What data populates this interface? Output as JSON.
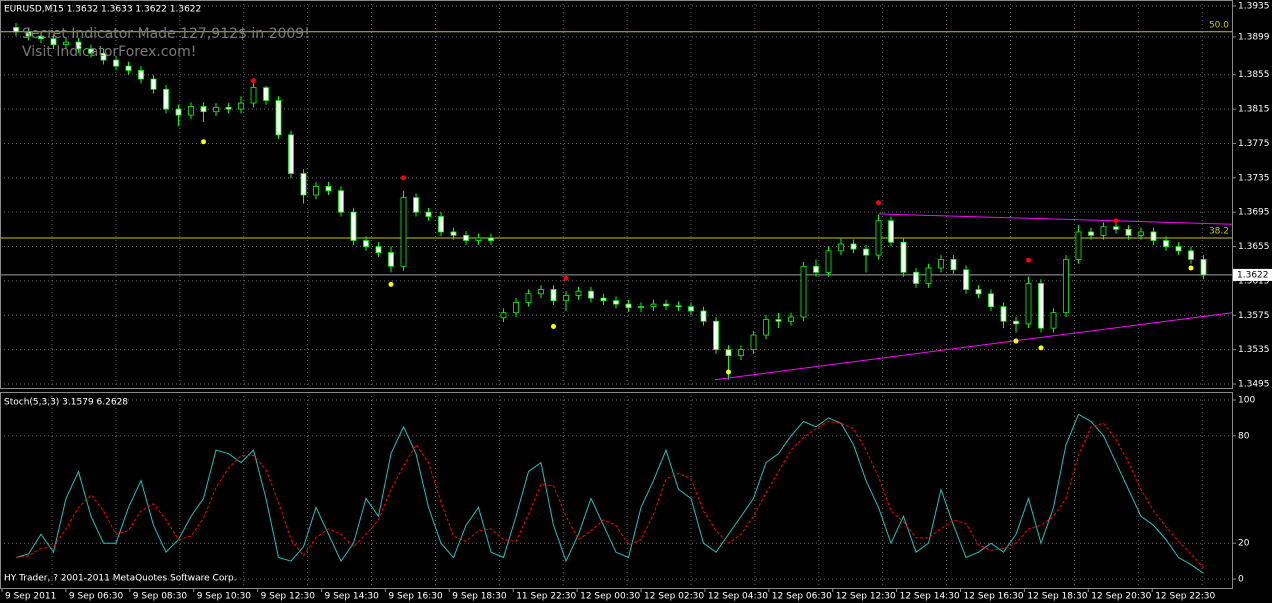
{
  "chart_data": [
    {
      "type": "candlestick",
      "title": "EURUSD,M15  1.3632 1.3633 1.3622 1.3622",
      "annotations": [
        "Secret Indicator Made 127,912$ in 2009!",
        "Visit IndicatorForex.com!"
      ],
      "ylim": [
        1.3495,
        1.3935
      ],
      "yticks": [
        1.3935,
        1.3899,
        1.3855,
        1.3815,
        1.3775,
        1.3735,
        1.3695,
        1.3655,
        1.3615,
        1.3575,
        1.3535,
        1.3495
      ],
      "grid": true,
      "up_color": "#000000",
      "down_color": "#ffffff",
      "wick_color": "#00ff00",
      "open": [
        1.391,
        1.3905,
        1.39,
        1.3897,
        1.389,
        1.3893,
        1.3885,
        1.388,
        1.3872,
        1.3865,
        1.386,
        1.385,
        1.3838,
        1.3815,
        1.3808,
        1.3818,
        1.3812,
        1.3817,
        1.3815,
        1.3822,
        1.384,
        1.3825,
        1.3785,
        1.374,
        1.3715,
        1.3725,
        1.372,
        1.3695,
        1.3662,
        1.3655,
        1.3648,
        1.3632,
        1.3712,
        1.3695,
        1.369,
        1.3672,
        1.3668,
        1.3662,
        1.3665,
        1.3572,
        1.3578,
        1.359,
        1.36,
        1.3605,
        1.3592,
        1.3598,
        1.3603,
        1.3595,
        1.3592,
        1.3588,
        1.3584,
        1.3585,
        1.3588,
        1.3586,
        1.3585,
        1.358,
        1.3568,
        1.3535,
        1.3528,
        1.3535,
        1.3552,
        1.357,
        1.3568,
        1.3573,
        1.3632,
        1.3625,
        1.365,
        1.3658,
        1.3652,
        1.3645,
        1.3685,
        1.366,
        1.3625,
        1.3612,
        1.363,
        1.364,
        1.3628,
        1.3605,
        1.36,
        1.3585,
        1.3568,
        1.3565,
        1.3612,
        1.356,
        1.3578,
        1.364,
        1.3672,
        1.3668,
        1.3678,
        1.3675,
        1.3668,
        1.3672,
        1.3662,
        1.3655,
        1.365,
        1.364
      ],
      "high": [
        1.3915,
        1.391,
        1.3905,
        1.3902,
        1.3898,
        1.3898,
        1.389,
        1.3885,
        1.3877,
        1.387,
        1.3865,
        1.3855,
        1.3843,
        1.382,
        1.3823,
        1.3823,
        1.3822,
        1.3822,
        1.383,
        1.3845,
        1.3842,
        1.383,
        1.379,
        1.3745,
        1.373,
        1.373,
        1.3725,
        1.37,
        1.3667,
        1.366,
        1.3655,
        1.372,
        1.3717,
        1.37,
        1.3695,
        1.3677,
        1.3673,
        1.367,
        1.367,
        1.3583,
        1.3595,
        1.3605,
        1.361,
        1.361,
        1.3603,
        1.3608,
        1.3608,
        1.36,
        1.3597,
        1.3593,
        1.359,
        1.3593,
        1.3593,
        1.3591,
        1.359,
        1.3585,
        1.3573,
        1.354,
        1.354,
        1.3557,
        1.3575,
        1.3578,
        1.3578,
        1.3637,
        1.364,
        1.3655,
        1.3665,
        1.3663,
        1.3657,
        1.3692,
        1.369,
        1.3665,
        1.363,
        1.3635,
        1.3645,
        1.3645,
        1.3633,
        1.361,
        1.3605,
        1.359,
        1.3573,
        1.362,
        1.3617,
        1.3583,
        1.3645,
        1.368,
        1.3677,
        1.3683,
        1.3683,
        1.368,
        1.3677,
        1.3677,
        1.3667,
        1.366,
        1.3655,
        1.3645
      ],
      "low": [
        1.39,
        1.3895,
        1.3892,
        1.3885,
        1.3885,
        1.388,
        1.3875,
        1.3867,
        1.386,
        1.3855,
        1.3845,
        1.3833,
        1.381,
        1.3795,
        1.3803,
        1.38,
        1.3807,
        1.381,
        1.381,
        1.3817,
        1.382,
        1.378,
        1.3735,
        1.3705,
        1.371,
        1.3715,
        1.369,
        1.3657,
        1.365,
        1.3643,
        1.3625,
        1.3627,
        1.369,
        1.3685,
        1.3667,
        1.3663,
        1.3657,
        1.3657,
        1.3657,
        1.3567,
        1.3573,
        1.3585,
        1.3595,
        1.3587,
        1.358,
        1.3593,
        1.359,
        1.3587,
        1.3583,
        1.3579,
        1.3579,
        1.358,
        1.3581,
        1.358,
        1.3575,
        1.3563,
        1.353,
        1.35,
        1.3523,
        1.353,
        1.3547,
        1.356,
        1.3563,
        1.3568,
        1.362,
        1.362,
        1.3645,
        1.3647,
        1.3625,
        1.364,
        1.3655,
        1.362,
        1.3607,
        1.3607,
        1.3625,
        1.3623,
        1.36,
        1.3595,
        1.358,
        1.356,
        1.3555,
        1.356,
        1.3555,
        1.3555,
        1.3573,
        1.3635,
        1.3663,
        1.3663,
        1.367,
        1.3663,
        1.3663,
        1.3657,
        1.365,
        1.3645,
        1.3635,
        1.3617
      ],
      "close": [
        1.3905,
        1.39,
        1.3897,
        1.389,
        1.3893,
        1.3885,
        1.388,
        1.3872,
        1.3865,
        1.386,
        1.385,
        1.3838,
        1.3815,
        1.3808,
        1.3818,
        1.3812,
        1.3817,
        1.3815,
        1.3822,
        1.384,
        1.3825,
        1.3785,
        1.374,
        1.3715,
        1.3725,
        1.372,
        1.3695,
        1.3662,
        1.3655,
        1.3648,
        1.3632,
        1.3712,
        1.3695,
        1.369,
        1.3672,
        1.3668,
        1.3662,
        1.3665,
        1.3662,
        1.3578,
        1.359,
        1.36,
        1.3605,
        1.3592,
        1.3598,
        1.3603,
        1.3595,
        1.3592,
        1.3588,
        1.3584,
        1.3585,
        1.3588,
        1.3586,
        1.3585,
        1.358,
        1.3568,
        1.3535,
        1.3528,
        1.3535,
        1.3552,
        1.357,
        1.3568,
        1.3573,
        1.3632,
        1.3625,
        1.365,
        1.3658,
        1.3652,
        1.3645,
        1.3685,
        1.366,
        1.3625,
        1.3612,
        1.363,
        1.364,
        1.3628,
        1.3605,
        1.36,
        1.3585,
        1.3568,
        1.3565,
        1.3612,
        1.356,
        1.3578,
        1.364,
        1.3672,
        1.3668,
        1.3678,
        1.3675,
        1.3668,
        1.3672,
        1.3662,
        1.3655,
        1.365,
        1.364,
        1.3622
      ],
      "bid": 1.3622,
      "bid_color": "#a0a0a0",
      "levels": [
        {
          "label": "50.0",
          "value": 1.3905,
          "color": "#c8c800"
        },
        {
          "label": "38.2",
          "value": 1.3665,
          "color": "#c8c800"
        }
      ],
      "trendlines": [
        {
          "color": "#ff00ff",
          "x": [
            69,
            97.3
          ],
          "values": [
            1.3693,
            1.3681
          ]
        },
        {
          "color": "#ff00ff",
          "x": [
            55.9,
            97.3
          ],
          "values": [
            1.35,
            1.3578
          ]
        }
      ],
      "fractal_up": {
        "color": "#ff0000",
        "index": [
          19,
          31,
          44,
          69,
          81,
          88
        ],
        "values": [
          1.3848,
          1.3735,
          1.3618,
          1.3706,
          1.3639,
          1.3685
        ]
      },
      "fractal_down": {
        "color": "#ffff00",
        "index": [
          15,
          30,
          43,
          57,
          80,
          82,
          94
        ],
        "values": [
          1.3777,
          1.3611,
          1.3562,
          1.3509,
          1.3545,
          1.3537,
          1.363
        ]
      }
    },
    {
      "type": "line",
      "title": "Stoch(5,3,3) 3.1579 6.2628",
      "annotations": [
        "HY Trader, ? 2001-2011 MetaQuotes Software Corp."
      ],
      "ylim": [
        0,
        100
      ],
      "yticks": [
        100,
        80,
        20,
        0
      ],
      "grid": true,
      "xtick_labels": [
        "9 Sep 2011",
        "9 Sep 06:30",
        "9 Sep 08:30",
        "9 Sep 10:30",
        "9 Sep 12:30",
        "9 Sep 14:30",
        "9 Sep 16:30",
        "9 Sep 18:30",
        "11 Sep 22:30",
        "12 Sep 00:30",
        "12 Sep 02:30",
        "12 Sep 04:30",
        "12 Sep 06:30",
        "12 Sep 12:30",
        "12 Sep 14:30",
        "12 Sep 16:30",
        "12 Sep 18:30",
        "12 Sep 20:30",
        "12 Sep 22:30"
      ],
      "series": [
        {
          "color": "#20c0c0",
          "dashed": false,
          "values": [
            12,
            14,
            25,
            15,
            45,
            60,
            35,
            20,
            20,
            40,
            55,
            30,
            15,
            22,
            35,
            45,
            72,
            70,
            65,
            72,
            45,
            12,
            10,
            18,
            40,
            25,
            10,
            20,
            45,
            35,
            70,
            85,
            70,
            40,
            20,
            12,
            30,
            40,
            15,
            12,
            35,
            60,
            65,
            30,
            10,
            25,
            45,
            30,
            15,
            12,
            40,
            55,
            72,
            50,
            45,
            20,
            15,
            25,
            35,
            45,
            65,
            70,
            80,
            88,
            85,
            90,
            87,
            75,
            55,
            40,
            20,
            35,
            15,
            20,
            50,
            30,
            12,
            15,
            20,
            15,
            25,
            45,
            20,
            40,
            75,
            92,
            88,
            80,
            65,
            50,
            35,
            30,
            22,
            12,
            8,
            3.1579
          ]
        },
        {
          "color": "#ff0000",
          "dashed": true,
          "values": [
            12,
            13,
            17,
            18,
            28,
            40,
            47,
            38,
            25,
            27,
            38,
            42,
            33,
            22,
            24,
            34,
            51,
            62,
            69,
            69,
            61,
            43,
            22,
            13,
            23,
            28,
            25,
            18,
            25,
            33,
            50,
            63,
            75,
            65,
            43,
            24,
            21,
            27,
            28,
            22,
            21,
            36,
            53,
            52,
            35,
            22,
            27,
            33,
            30,
            19,
            22,
            36,
            56,
            59,
            56,
            38,
            27,
            20,
            25,
            35,
            48,
            60,
            72,
            79,
            84,
            88,
            87,
            84,
            72,
            57,
            38,
            32,
            23,
            23,
            28,
            33,
            31,
            19,
            16,
            17,
            20,
            28,
            30,
            35,
            45,
            69,
            85,
            87,
            78,
            65,
            50,
            38,
            29,
            21,
            14,
            6.2628
          ]
        }
      ]
    }
  ]
}
